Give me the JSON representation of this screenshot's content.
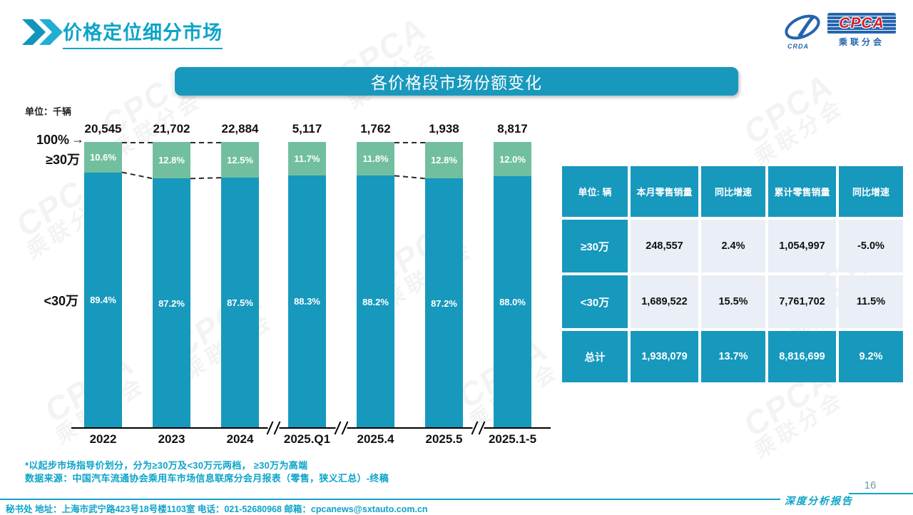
{
  "page": {
    "title": "价格定位细分市场",
    "page_number": "16",
    "report_label": "深度分析报告",
    "footer_contact": "秘书处  地址：上海市武宁路423号18号楼1103室  电话：021-52680968   邮箱：cpcanews@sxtauto.com.cn",
    "note1": "*以起步市场指导价划分，分为≥30万及<30万元两档， ≥30万为高端",
    "note2": "数据来源：中国汽车流通协会乘用车市场信息联席分会月报表（零售，狭义汇总）-终稿",
    "watermark_en": "CPCA",
    "watermark_cn": "乘联分会"
  },
  "logo": {
    "en": "CPCA",
    "cn": "乘联分会",
    "crda": "CRDA"
  },
  "banner": {
    "title": "各价格段市场份额变化"
  },
  "chart_data": {
    "type": "bar",
    "stacked": true,
    "unit_label": "单位：千辆",
    "left_axis_top_label": "100%",
    "categories": [
      "2022",
      "2023",
      "2024",
      "2025.Q1",
      "2025.4",
      "2025.5",
      "2025.1-5"
    ],
    "totals": [
      "20,545",
      "21,702",
      "22,884",
      "5,117",
      "1,762",
      "1,938",
      "8,817"
    ],
    "series": [
      {
        "name": "≥30万",
        "color": "#72bf9f",
        "values": [
          10.6,
          12.8,
          12.5,
          11.7,
          11.8,
          12.8,
          12.0
        ]
      },
      {
        "name": "<30万",
        "color": "#1798bd",
        "values": [
          89.4,
          87.2,
          87.5,
          88.3,
          88.2,
          87.2,
          88.0
        ]
      }
    ],
    "ylim": [
      0,
      100
    ],
    "axis_breaks_after": [
      2,
      3,
      5
    ],
    "dash_links_between": [
      [
        0,
        1
      ],
      [
        1,
        2
      ],
      [
        4,
        5
      ]
    ],
    "legend_position": "left-of-bars"
  },
  "table": {
    "unit_header": "单位: 辆",
    "headers": [
      "单位: 辆",
      "本月零售销量",
      "同比增速",
      "累计零售销量",
      "同比增速"
    ],
    "rows": [
      {
        "label": "≥30万",
        "cells": [
          "248,557",
          "2.4%",
          "1,054,997",
          "-5.0%"
        ],
        "total": false
      },
      {
        "label": "<30万",
        "cells": [
          "1,689,522",
          "15.5%",
          "7,761,702",
          "11.5%"
        ],
        "total": false
      },
      {
        "label": "总计",
        "cells": [
          "1,938,079",
          "13.7%",
          "8,816,699",
          "9.2%"
        ],
        "total": true
      }
    ]
  },
  "colors": {
    "teal": "#1798bd",
    "teal_bright": "#0ca4c8",
    "green": "#72bf9f",
    "table_row_bg": "#eaeef6",
    "logo_blue": "#2565ae",
    "logo_red": "#d22027"
  }
}
